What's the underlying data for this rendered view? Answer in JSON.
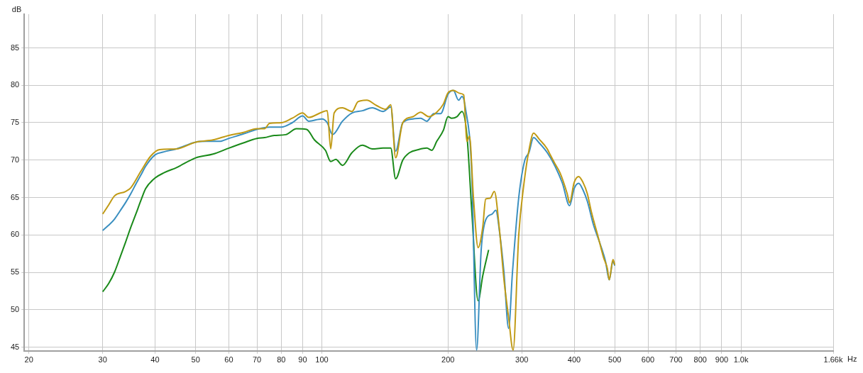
{
  "chart_data": {
    "type": "line",
    "xlabel": "Hz",
    "ylabel": "dB",
    "log": "x",
    "grid": true,
    "legend": false,
    "xlim": [
      19.5,
      1660
    ],
    "xticks": [
      20,
      30,
      40,
      50,
      60,
      70,
      80,
      90,
      100,
      200,
      300,
      400,
      500,
      600,
      700,
      800,
      900,
      {
        "value": 1000,
        "label": "1.0k"
      },
      {
        "value": 1660,
        "label": "1.66k"
      }
    ],
    "ylim": [
      44.5,
      89.5
    ],
    "yticks": [
      45,
      50,
      55,
      60,
      65,
      70,
      75,
      80,
      85
    ],
    "series": [
      {
        "color": "#c09a14",
        "x": [
          30,
          31,
          32,
          34,
          35,
          37,
          39,
          41,
          45,
          50,
          55,
          60,
          65,
          70,
          73,
          75,
          80,
          85,
          90,
          93,
          100,
          103,
          105,
          107,
          112,
          118,
          122,
          128,
          135,
          142,
          146,
          150,
          156,
          165,
          172,
          180,
          188,
          195,
          200,
          206,
          214,
          218,
          222,
          225,
          230,
          236,
          242,
          246,
          252,
          258,
          265,
          272,
          279,
          286,
          295,
          303,
          312,
          320,
          330,
          345,
          350,
          360,
          370,
          385,
          390,
          400,
          410,
          420,
          430,
          440,
          455,
          470,
          480,
          485,
          495,
          500
        ],
        "values": [
          62.8,
          64,
          65.2,
          65.8,
          66.3,
          68.5,
          70.5,
          71.4,
          71.5,
          72.4,
          72.7,
          73.3,
          73.7,
          74.2,
          74.2,
          74.9,
          75,
          75.6,
          76.3,
          75.7,
          76.4,
          76.6,
          71.5,
          76.3,
          77,
          76.5,
          77.8,
          78,
          77.3,
          76.8,
          77.4,
          70.3,
          75,
          75.8,
          76.4,
          75.8,
          76.4,
          77.5,
          79,
          79.3,
          78.9,
          78.7,
          72.5,
          73.2,
          65,
          58.3,
          61,
          64.8,
          64.9,
          65.8,
          61,
          54,
          49,
          44.6,
          60,
          66.5,
          71.3,
          73.6,
          72.8,
          71.5,
          70.8,
          69.5,
          68.3,
          65.5,
          64.3,
          67,
          67.8,
          67,
          65.5,
          63,
          60,
          57,
          55.5,
          54,
          56.7,
          56
        ]
      },
      {
        "color": "#3a8fc0",
        "x": [
          30,
          31,
          32,
          33,
          34,
          35,
          36,
          37,
          38,
          40,
          42,
          45,
          50,
          53,
          57,
          60,
          65,
          70,
          75,
          80,
          85,
          90,
          93,
          100,
          103,
          106,
          112,
          118,
          125,
          132,
          140,
          146,
          150,
          156,
          165,
          172,
          178,
          185,
          192,
          200,
          206,
          212,
          216,
          220,
          228,
          234,
          240,
          246,
          255,
          260,
          266,
          272,
          279,
          285,
          295,
          305,
          312,
          320,
          330,
          345,
          360,
          375,
          390,
          400,
          410,
          420,
          430,
          445,
          460,
          475,
          485,
          495,
          500
        ],
        "values": [
          60.6,
          61.3,
          62.1,
          63.2,
          64.3,
          65.5,
          66.8,
          68,
          69.2,
          70.7,
          71.1,
          71.5,
          72.4,
          72.5,
          72.5,
          72.9,
          73.5,
          74.1,
          74.4,
          74.4,
          75,
          75.9,
          75.2,
          75.5,
          75,
          73.4,
          75.2,
          76.3,
          76.6,
          77,
          76.5,
          77.1,
          71.2,
          75,
          75.5,
          75.6,
          75.2,
          76.2,
          76.2,
          78.8,
          79.3,
          78,
          78.5,
          77,
          68,
          44.6,
          58,
          62,
          62.8,
          63.3,
          60,
          55,
          47.5,
          55,
          65,
          70,
          71,
          73,
          72.3,
          71,
          69.2,
          66.9,
          63.9,
          66.2,
          66.9,
          66,
          64.5,
          61.3,
          59,
          56.5,
          54,
          56.5,
          55.9
        ]
      },
      {
        "color": "#1a8a1a",
        "x": [
          30,
          31,
          32,
          33,
          34,
          35,
          36,
          37,
          38,
          40,
          42,
          45,
          50,
          55,
          60,
          65,
          70,
          73,
          77,
          82,
          87,
          92,
          96,
          102,
          105,
          108,
          112,
          118,
          125,
          132,
          140,
          146,
          150,
          156,
          162,
          170,
          178,
          183,
          188,
          195,
          200,
          204,
          210,
          216,
          222,
          228,
          236,
          242,
          250
        ],
        "values": [
          52.4,
          53.5,
          55,
          57,
          59,
          61,
          62.8,
          64.6,
          66.2,
          67.6,
          68.3,
          69,
          70.3,
          70.8,
          71.6,
          72.3,
          72.9,
          73,
          73.3,
          73.4,
          74.2,
          74.1,
          72.7,
          71.3,
          69.8,
          70.1,
          69.3,
          71,
          72,
          71.5,
          71.6,
          71.6,
          67.5,
          70,
          71,
          71.4,
          71.6,
          71.3,
          72.5,
          74,
          75.8,
          75.6,
          75.8,
          76.5,
          73.2,
          63,
          51.2,
          54.5,
          58
        ]
      }
    ]
  }
}
